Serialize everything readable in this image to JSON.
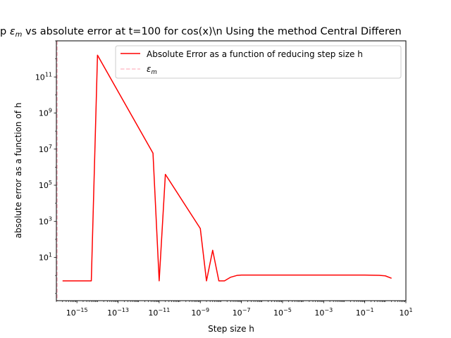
{
  "chart_data": {
    "type": "line",
    "title_prefix": "p ",
    "title_eps_main": "ε",
    "title_eps_sub": "m",
    "title_suffix": " vs absolute error at t=100 for cos(x)\\n Using the method Central Differen",
    "xlabel": "Step size h",
    "ylabel": "absolute error as a function of h",
    "xscale": "log",
    "yscale": "log",
    "xlim": [
      1e-16,
      10
    ],
    "ylim": [
      0.04,
      10000000000000.0
    ],
    "grid": false,
    "legend_position": "upper right",
    "x_ticks": [
      {
        "exp": -15,
        "base": "10",
        "sup": "−15"
      },
      {
        "exp": -13,
        "base": "10",
        "sup": "−13"
      },
      {
        "exp": -11,
        "base": "10",
        "sup": "−11"
      },
      {
        "exp": -9,
        "base": "10",
        "sup": "−9"
      },
      {
        "exp": -7,
        "base": "10",
        "sup": "−7"
      },
      {
        "exp": -5,
        "base": "10",
        "sup": "−5"
      },
      {
        "exp": -3,
        "base": "10",
        "sup": "−3"
      },
      {
        "exp": -1,
        "base": "10",
        "sup": "−1"
      },
      {
        "exp": 1,
        "base": "10",
        "sup": "1"
      }
    ],
    "y_ticks": [
      {
        "exp": 1,
        "base": "10",
        "sup": "1"
      },
      {
        "exp": 3,
        "base": "10",
        "sup": "3"
      },
      {
        "exp": 5,
        "base": "10",
        "sup": "5"
      },
      {
        "exp": 7,
        "base": "10",
        "sup": "7"
      },
      {
        "exp": 9,
        "base": "10",
        "sup": "9"
      },
      {
        "exp": 11,
        "base": "10",
        "sup": "11"
      }
    ],
    "series": [
      {
        "name": "Absolute Error as a function of reducing step size h",
        "color": "#ff0000",
        "style": "solid",
        "x": [
          2e-16,
          1e-15,
          2e-15,
          5e-15,
          1e-14,
          5e-12,
          1e-11,
          2e-11,
          1e-09,
          2e-09,
          4e-09,
          8e-09,
          1.5e-08,
          3e-08,
          6e-08,
          1e-07,
          1e-06,
          1e-05,
          0.0001,
          0.001,
          0.01,
          0.1,
          0.5,
          1,
          2
        ],
        "y": [
          0.5,
          0.5,
          0.5,
          0.5,
          1600000000000.0,
          6000000.0,
          0.5,
          400000.0,
          400,
          0.5,
          25,
          0.5,
          0.5,
          0.8,
          1.0,
          1.05,
          1.05,
          1.05,
          1.05,
          1.05,
          1.05,
          1.05,
          1.02,
          0.95,
          0.7
        ]
      },
      {
        "name": "ε_m",
        "legend_main": "ε",
        "legend_sub": "m",
        "color": "#ffc0cb",
        "style": "dashed",
        "vline_x": 1.1e-16
      }
    ]
  }
}
